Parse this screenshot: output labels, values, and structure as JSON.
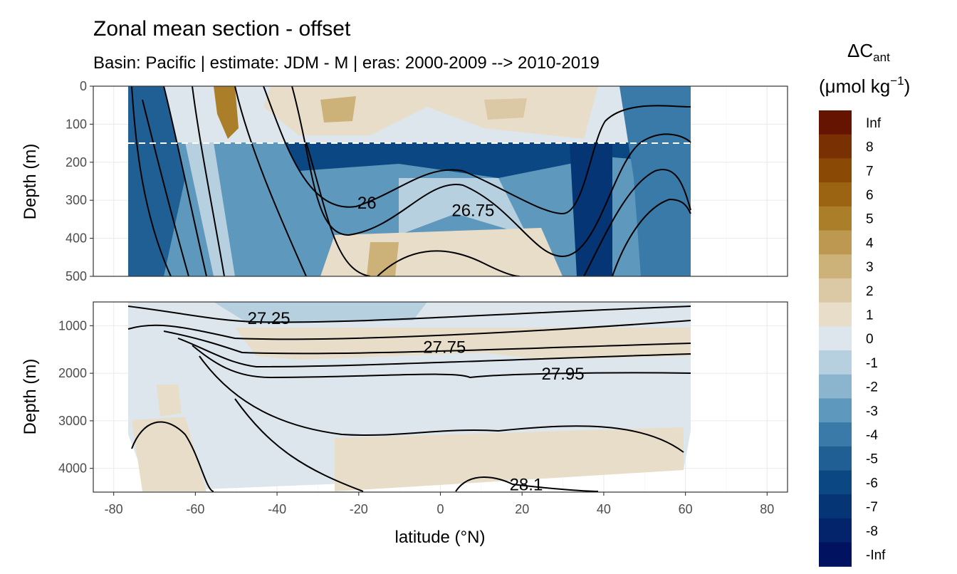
{
  "chart_data": {
    "type": "heatmap",
    "title": "Zonal mean section - offset",
    "subtitle": "Basin: Pacific | estimate: JDM - M | eras: 2000-2009 --> 2010-2019",
    "xlabel": "latitude (°N)",
    "ylabel_top": "Depth (m)",
    "ylabel_bottom": "Depth (m)",
    "xlim": [
      -85,
      85
    ],
    "x_ticks": [
      "-80",
      "-60",
      "-40",
      "-20",
      "0",
      "20",
      "40",
      "60",
      "80"
    ],
    "panels": [
      {
        "name": "upper",
        "ylim": [
          0,
          500
        ],
        "y_ticks": [
          "0",
          "100",
          "200",
          "300",
          "400",
          "500"
        ],
        "dashed_line_depth": 150
      },
      {
        "name": "lower",
        "ylim": [
          500,
          4500
        ],
        "y_ticks": [
          "1000",
          "2000",
          "3000",
          "4000"
        ]
      }
    ],
    "data_extent_lat": [
      -76,
      61
    ],
    "legend": {
      "title_main": "ΔC",
      "title_sub": "ant",
      "unit_prefix": "(μmol kg",
      "unit_sup": "−1",
      "unit_suffix": ")",
      "labels": [
        "Inf",
        "8",
        "7",
        "6",
        "5",
        "4",
        "3",
        "2",
        "1",
        "0",
        "-1",
        "-2",
        "-3",
        "-4",
        "-5",
        "-6",
        "-7",
        "-8",
        "-Inf"
      ],
      "colors": [
        "#651401",
        "#793003",
        "#8a4a06",
        "#9a6412",
        "#ab7e2a",
        "#bd9850",
        "#ccb179",
        "#dbc8a4",
        "#e8ddc9",
        "#dde6ec",
        "#b7d0e0",
        "#8bb5cf",
        "#5e98bc",
        "#3a7aa8",
        "#1f5f94",
        "#0b4883",
        "#053575",
        "#03236a",
        "#011260"
      ]
    },
    "contour_labels": [
      {
        "text": "26",
        "lat": -18,
        "depth": 305
      },
      {
        "text": "26.75",
        "lat": 8,
        "depth": 325
      },
      {
        "text": "27.25",
        "lat": -42,
        "depth": 830
      },
      {
        "text": "27.75",
        "lat": 1,
        "depth": 1440
      },
      {
        "text": "27.95",
        "lat": 30,
        "depth": 2000
      },
      {
        "text": "28.1",
        "lat": 21,
        "depth": 4330
      }
    ]
  }
}
